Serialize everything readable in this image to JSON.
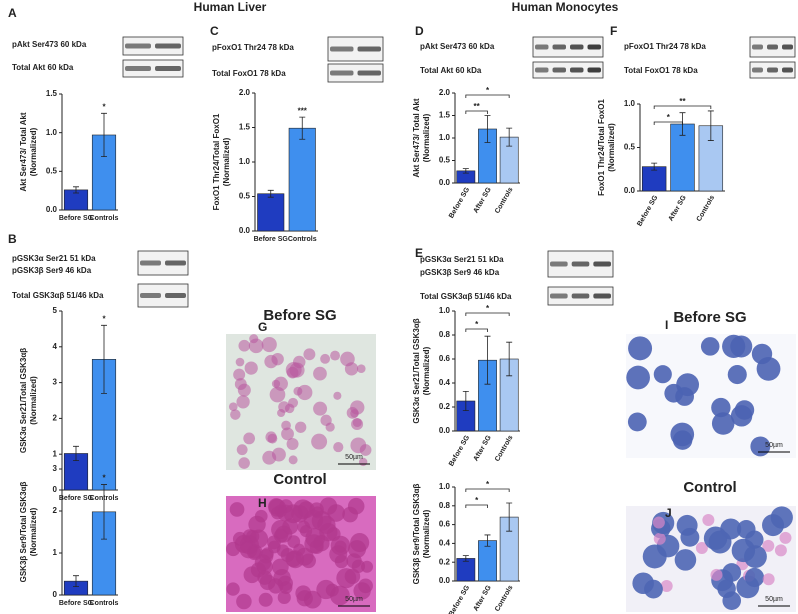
{
  "figure": {
    "headings": [
      "Human Liver",
      "Human Monocytes"
    ],
    "panel_letters": [
      "A",
      "B",
      "C",
      "D",
      "E",
      "F"
    ],
    "blots": [
      [
        "pAkt  Ser473 60 kDa",
        "Total Akt    60 kDa"
      ],
      [
        "pFoxO1  Thr24 78 kDa",
        "Total FoxO1     78 kDa"
      ],
      [
        "pGSK3α   Ser21 51 kDa",
        "pGSK3β   Ser9 46 kDa",
        "Total GSK3αβ   51/46 kDa"
      ],
      [
        "pAkt  Ser473 60 kDa",
        "Total Akt     60 kDa"
      ],
      [
        "pFoxO1  Thr24 78 kDa",
        "Total FoxO1     78 kDa"
      ],
      [
        "pGSK3α   Ser21 51 kDa",
        "pGSK3β   Ser9 46 kDa",
        "Total GSK3αβ   51/46 kDa"
      ]
    ],
    "micrographs": [
      {
        "title": "Before SG",
        "letter": "G",
        "scale": "50µm"
      },
      {
        "title": "Control",
        "letter": "H",
        "scale": "50µm"
      },
      {
        "title": "Before SG",
        "letter": "I",
        "scale": "50µm"
      },
      {
        "title": "Control",
        "letter": "J",
        "scale": "50µm"
      }
    ]
  },
  "chart_data": [
    {
      "type": "bar",
      "ylabel": [
        "Akt Ser473/ Total Akt",
        "(Normalized)"
      ],
      "categories": [
        "Before SG",
        "Controls"
      ],
      "values": [
        0.26,
        0.97
      ],
      "errors": [
        0.04,
        0.28
      ],
      "colors": [
        "#1f3cc0",
        "#3f8fee"
      ],
      "ylim": [
        0,
        1.5
      ],
      "yticks": [
        {
          "value": 0,
          "label": "0.0"
        },
        0.5,
        {
          "value": 1,
          "label": "1.0"
        },
        1.5
      ],
      "significance": "*"
    },
    {
      "type": "bar",
      "ylabel": [
        "FoxO1 Thr24/Total FoxO1",
        "(Normalized)"
      ],
      "categories": [
        "Before SG",
        "Controls"
      ],
      "values": [
        0.54,
        1.49
      ],
      "errors": [
        0.05,
        0.16
      ],
      "colors": [
        "#1f3cc0",
        "#3f8fee"
      ],
      "ylim": [
        0,
        2
      ],
      "yticks": [
        {
          "value": 0,
          "label": "0.0"
        },
        0.5,
        {
          "value": 1,
          "label": "1.0"
        },
        1.5,
        {
          "value": 2,
          "label": "2.0"
        }
      ],
      "significance": "***"
    },
    {
      "type": "bar",
      "ylabel": [
        "GSK3α Ser21/Total GSK3αβ",
        "(Normalized)"
      ],
      "categories": [
        "Before SG",
        "Controls"
      ],
      "values": [
        1.02,
        3.65
      ],
      "errors": [
        0.2,
        0.95
      ],
      "colors": [
        "#1f3cc0",
        "#3f8fee"
      ],
      "ylim": [
        0,
        5
      ],
      "yticks": [
        0,
        1,
        2,
        3,
        4,
        5
      ],
      "significance": "*"
    },
    {
      "type": "bar",
      "ylabel": [
        "GSK3β Ser9/Total GSK3αβ",
        "(Normalized)"
      ],
      "categories": [
        "Before SG",
        "Controls"
      ],
      "values": [
        0.33,
        1.98
      ],
      "errors": [
        0.13,
        0.65
      ],
      "colors": [
        "#1f3cc0",
        "#3f8fee"
      ],
      "ylim": [
        0,
        3
      ],
      "yticks": [
        0,
        1,
        2,
        3
      ],
      "significance": "*"
    },
    {
      "type": "bar",
      "ylabel": [
        "Akt Ser473/ Total Akt",
        "(Normalized)"
      ],
      "categories": [
        "Before SG",
        "After SG",
        "Controls"
      ],
      "values": [
        0.27,
        1.2,
        1.02
      ],
      "errors": [
        0.05,
        0.3,
        0.2
      ],
      "colors": [
        "#1f3cc0",
        "#3f8fee",
        "#a9c8f2"
      ],
      "ylim": [
        0,
        2
      ],
      "yticks": [
        {
          "value": 0,
          "label": "0.0"
        },
        0.5,
        {
          "value": 1,
          "label": "1.0"
        },
        1.5,
        {
          "value": 2,
          "label": "2.0"
        }
      ],
      "brackets": [
        {
          "label": "**",
          "span": [
            0,
            1
          ]
        },
        {
          "label": "*",
          "span": [
            0,
            2
          ]
        }
      ]
    },
    {
      "type": "bar",
      "ylabel": [
        "FoxO1 Thr24/Total FoxO1",
        "(Normalized)"
      ],
      "categories": [
        "Before SG",
        "After SG",
        "Controls"
      ],
      "values": [
        0.28,
        0.77,
        0.75
      ],
      "errors": [
        0.04,
        0.13,
        0.17
      ],
      "colors": [
        "#1f3cc0",
        "#3f8fee",
        "#a9c8f2"
      ],
      "ylim": [
        0,
        1
      ],
      "yticks": [
        {
          "value": 0,
          "label": "0.0"
        },
        0.5,
        {
          "value": 1,
          "label": "1.0"
        }
      ],
      "brackets": [
        {
          "label": "*",
          "span": [
            0,
            1
          ]
        },
        {
          "label": "**",
          "span": [
            0,
            2
          ]
        }
      ]
    },
    {
      "type": "bar",
      "ylabel": [
        "GSK3α Ser21/Total GSK3αβ",
        "(Normalized)"
      ],
      "categories": [
        "Before SG",
        "After SG",
        "Controls"
      ],
      "values": [
        0.25,
        0.59,
        0.6
      ],
      "errors": [
        0.08,
        0.2,
        0.14
      ],
      "colors": [
        "#1f3cc0",
        "#3f8fee",
        "#a9c8f2"
      ],
      "ylim": [
        0,
        1
      ],
      "yticks": [
        {
          "value": 0,
          "label": "0.0"
        },
        0.2,
        0.4,
        0.6,
        0.8,
        {
          "value": 1,
          "label": "1.0"
        }
      ],
      "brackets": [
        {
          "label": "*",
          "span": [
            0,
            1
          ]
        },
        {
          "label": "*",
          "span": [
            0,
            2
          ]
        }
      ]
    },
    {
      "type": "bar",
      "ylabel": [
        "GSK3β Ser9/Total GSK3αβ",
        "(Normalized)"
      ],
      "categories": [
        "Before SG",
        "After SG",
        "Controls"
      ],
      "values": [
        0.24,
        0.43,
        0.68
      ],
      "errors": [
        0.03,
        0.06,
        0.15
      ],
      "colors": [
        "#1f3cc0",
        "#3f8fee",
        "#a9c8f2"
      ],
      "ylim": [
        0,
        1
      ],
      "yticks": [
        {
          "value": 0,
          "label": "0.0"
        },
        0.2,
        0.4,
        0.6,
        0.8,
        {
          "value": 1,
          "label": "1.0"
        }
      ],
      "brackets": [
        {
          "label": "*",
          "span": [
            0,
            1
          ]
        },
        {
          "label": "*",
          "span": [
            0,
            2
          ]
        }
      ]
    }
  ]
}
